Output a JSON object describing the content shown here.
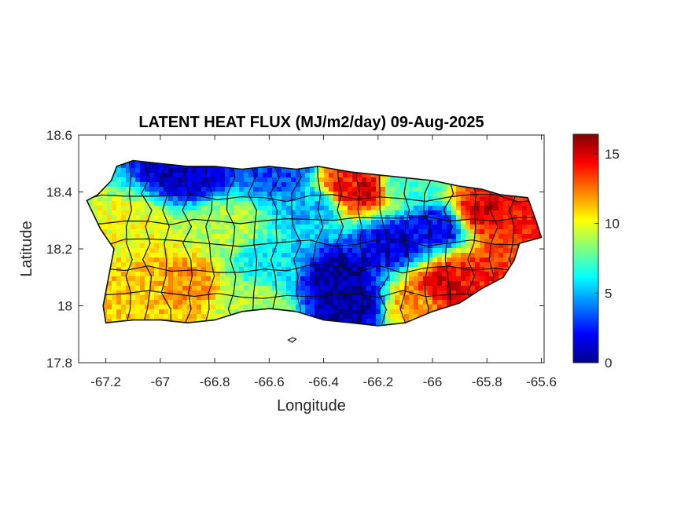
{
  "chart_data": {
    "type": "heatmap",
    "title": "LATENT HEAT FLUX (MJ/m2/day) 09-Aug-2025",
    "xlabel": "Longitude",
    "ylabel": "Latitude",
    "xlim": [
      -67.3,
      -65.59
    ],
    "ylim": [
      17.8,
      18.6
    ],
    "x_ticks": [
      -67.2,
      -67,
      -66.8,
      -66.6,
      -66.4,
      -66.2,
      -66,
      -65.8,
      -65.6
    ],
    "x_tick_labels": [
      "-67.2",
      "-67",
      "-66.8",
      "-66.6",
      "-66.4",
      "-66.2",
      "-66",
      "-65.8",
      "-65.6"
    ],
    "y_ticks": [
      17.8,
      18,
      18.2,
      18.4,
      18.6
    ],
    "y_tick_labels": [
      "17.8",
      "18",
      "18.2",
      "18.4",
      "18.6"
    ],
    "colorbar": {
      "colormap": "jet",
      "range": [
        0,
        16.4
      ],
      "ticks": [
        0,
        5,
        10,
        15
      ],
      "tick_labels": [
        "0",
        "5",
        "10",
        "15"
      ]
    },
    "island_outline": [
      [
        -67.27,
        18.37
      ],
      [
        -67.23,
        18.39
      ],
      [
        -67.18,
        18.44
      ],
      [
        -67.16,
        18.49
      ],
      [
        -67.1,
        18.51
      ],
      [
        -67.0,
        18.5
      ],
      [
        -66.9,
        18.49
      ],
      [
        -66.8,
        18.49
      ],
      [
        -66.7,
        18.48
      ],
      [
        -66.6,
        18.49
      ],
      [
        -66.5,
        18.48
      ],
      [
        -66.42,
        18.49
      ],
      [
        -66.3,
        18.47
      ],
      [
        -66.2,
        18.46
      ],
      [
        -66.1,
        18.45
      ],
      [
        -66.0,
        18.44
      ],
      [
        -65.9,
        18.42
      ],
      [
        -65.82,
        18.41
      ],
      [
        -65.75,
        18.39
      ],
      [
        -65.65,
        18.38
      ],
      [
        -65.62,
        18.3
      ],
      [
        -65.6,
        18.24
      ],
      [
        -65.68,
        18.22
      ],
      [
        -65.7,
        18.16
      ],
      [
        -65.74,
        18.1
      ],
      [
        -65.82,
        18.06
      ],
      [
        -65.9,
        18.01
      ],
      [
        -66.0,
        17.98
      ],
      [
        -66.1,
        17.94
      ],
      [
        -66.2,
        17.93
      ],
      [
        -66.3,
        17.94
      ],
      [
        -66.4,
        17.95
      ],
      [
        -66.5,
        17.98
      ],
      [
        -66.6,
        17.99
      ],
      [
        -66.7,
        17.98
      ],
      [
        -66.8,
        17.95
      ],
      [
        -66.9,
        17.94
      ],
      [
        -67.0,
        17.95
      ],
      [
        -67.1,
        17.95
      ],
      [
        -67.2,
        17.94
      ],
      [
        -67.21,
        18.0
      ],
      [
        -67.19,
        18.1
      ],
      [
        -67.17,
        18.2
      ],
      [
        -67.22,
        18.27
      ],
      [
        -67.27,
        18.37
      ]
    ],
    "field_hotspots": [
      {
        "lon": -66.3,
        "lat": 18.43,
        "value": 14
      },
      {
        "lon": -66.26,
        "lat": 18.41,
        "value": 15
      },
      {
        "lon": -65.82,
        "lat": 18.33,
        "value": 15
      },
      {
        "lon": -65.72,
        "lat": 18.3,
        "value": 14
      },
      {
        "lon": -65.85,
        "lat": 18.1,
        "value": 14
      },
      {
        "lon": -65.95,
        "lat": 18.06,
        "value": 15
      },
      {
        "lon": -66.05,
        "lat": 18.0,
        "value": 12
      },
      {
        "lon": -66.92,
        "lat": 18.08,
        "value": 12
      },
      {
        "lon": -67.05,
        "lat": 18.05,
        "value": 11
      },
      {
        "lon": -66.35,
        "lat": 18.1,
        "value": 0.5
      },
      {
        "lon": -66.3,
        "lat": 18.0,
        "value": 0.5
      },
      {
        "lon": -66.15,
        "lat": 18.22,
        "value": 1.5
      },
      {
        "lon": -65.98,
        "lat": 18.28,
        "value": 2
      },
      {
        "lon": -66.9,
        "lat": 18.47,
        "value": 1
      },
      {
        "lon": -66.55,
        "lat": 18.47,
        "value": 3
      },
      {
        "lon": -66.45,
        "lat": 18.35,
        "value": 5
      },
      {
        "lon": -66.75,
        "lat": 18.28,
        "value": 9
      },
      {
        "lon": -67.12,
        "lat": 18.28,
        "value": 10
      },
      {
        "lon": -66.6,
        "lat": 18.15,
        "value": 6
      },
      {
        "lon": -66.1,
        "lat": 18.42,
        "value": 7
      },
      {
        "lon": -66.65,
        "lat": 18.0,
        "value": 9
      }
    ]
  }
}
